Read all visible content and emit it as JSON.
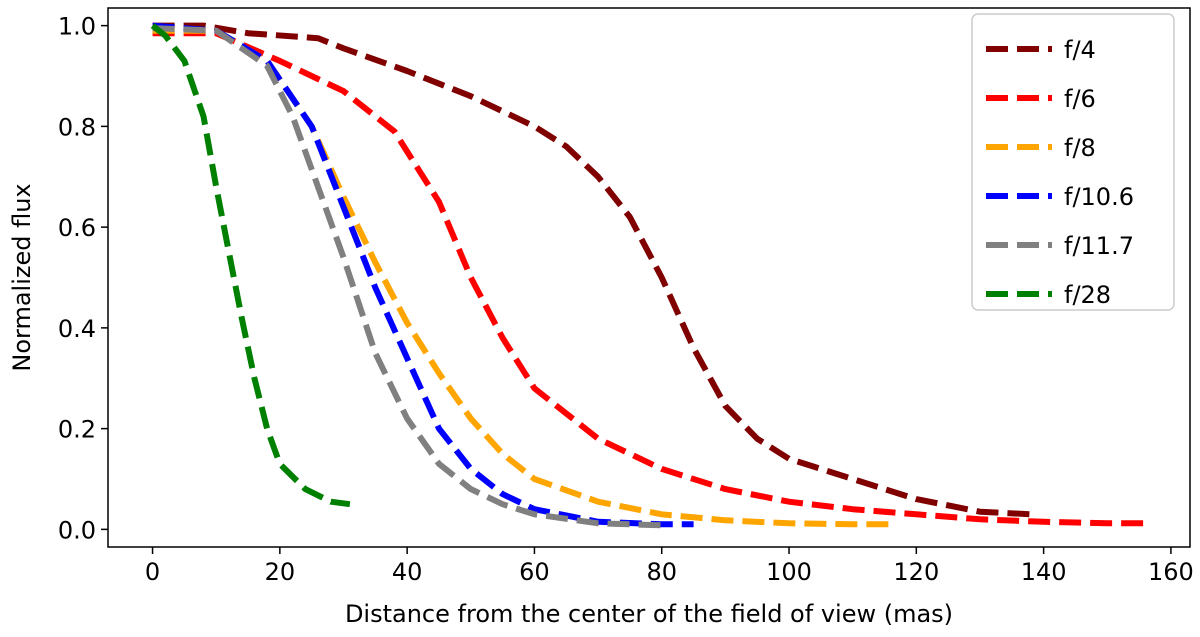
{
  "chart_data": {
    "type": "line",
    "title": "",
    "xlabel": "Distance from the center of the field of view (mas)",
    "ylabel": "Normalized flux",
    "xlim": [
      -7,
      163
    ],
    "ylim": [
      -0.035,
      1.035
    ],
    "xticks": [
      0,
      20,
      40,
      60,
      80,
      100,
      120,
      140,
      160
    ],
    "yticks": [
      0.0,
      0.2,
      0.4,
      0.6,
      0.8,
      1.0
    ],
    "xtick_labels": [
      "0",
      "20",
      "40",
      "60",
      "80",
      "100",
      "120",
      "140",
      "160"
    ],
    "ytick_labels": [
      "0.0",
      "0.2",
      "0.4",
      "0.6",
      "0.8",
      "1.0"
    ],
    "grid": false,
    "legend_position": "top-right",
    "line_style": "dashed",
    "series": [
      {
        "name": "f/4",
        "color": "#800000",
        "x": [
          0,
          8,
          15,
          26,
          30,
          40,
          50,
          60,
          65,
          70,
          75,
          80,
          85,
          90,
          95,
          100,
          110,
          120,
          130,
          138
        ],
        "y": [
          1.0,
          1.0,
          0.985,
          0.975,
          0.955,
          0.91,
          0.86,
          0.8,
          0.76,
          0.7,
          0.62,
          0.5,
          0.36,
          0.245,
          0.18,
          0.14,
          0.1,
          0.06,
          0.035,
          0.03
        ]
      },
      {
        "name": "f/6",
        "color": "#ff0000",
        "x": [
          0,
          10,
          20,
          30,
          38,
          45,
          50,
          55,
          60,
          70,
          80,
          90,
          100,
          110,
          120,
          130,
          140,
          150,
          156
        ],
        "y": [
          0.985,
          0.985,
          0.93,
          0.87,
          0.79,
          0.65,
          0.5,
          0.38,
          0.28,
          0.18,
          0.12,
          0.08,
          0.055,
          0.04,
          0.03,
          0.02,
          0.015,
          0.012,
          0.012
        ]
      },
      {
        "name": "f/8",
        "color": "#ffa500",
        "x": [
          0,
          10,
          18,
          25,
          30,
          35,
          40,
          45,
          50,
          55,
          60,
          70,
          80,
          90,
          100,
          110,
          117
        ],
        "y": [
          0.99,
          0.99,
          0.93,
          0.8,
          0.66,
          0.53,
          0.41,
          0.31,
          0.22,
          0.15,
          0.1,
          0.055,
          0.03,
          0.018,
          0.012,
          0.01,
          0.01
        ]
      },
      {
        "name": "f/10.6",
        "color": "#0000ff",
        "x": [
          0,
          10,
          18,
          25,
          30,
          35,
          40,
          45,
          50,
          55,
          60,
          70,
          80,
          85
        ],
        "y": [
          1.0,
          0.99,
          0.93,
          0.8,
          0.64,
          0.48,
          0.34,
          0.2,
          0.12,
          0.07,
          0.04,
          0.015,
          0.01,
          0.01
        ]
      },
      {
        "name": "f/11.7",
        "color": "#808080",
        "x": [
          0,
          10,
          18,
          22,
          26,
          30,
          35,
          40,
          45,
          50,
          55,
          60,
          70,
          80
        ],
        "y": [
          0.995,
          0.99,
          0.92,
          0.82,
          0.68,
          0.54,
          0.35,
          0.22,
          0.13,
          0.08,
          0.05,
          0.03,
          0.012,
          0.008
        ]
      },
      {
        "name": "f/28",
        "color": "#008000",
        "x": [
          0,
          2,
          5,
          8,
          10,
          12,
          14,
          16,
          18,
          20,
          24,
          28,
          31
        ],
        "y": [
          1.0,
          0.98,
          0.93,
          0.82,
          0.68,
          0.55,
          0.42,
          0.3,
          0.2,
          0.13,
          0.08,
          0.055,
          0.05
        ]
      }
    ]
  }
}
